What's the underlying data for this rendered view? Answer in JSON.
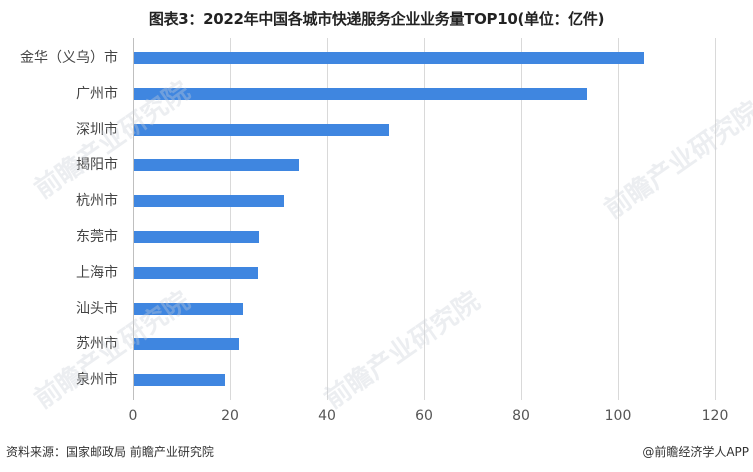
{
  "title": "图表3：2022年中国各城市快递服务企业业务量TOP10(单位：亿件)",
  "chart_data": {
    "type": "bar",
    "orientation": "horizontal",
    "title": "图表3：2022年中国各城市快递服务企业业务量TOP10(单位：亿件)",
    "categories": [
      "金华（义乌）市",
      "广州市",
      "深圳市",
      "揭阳市",
      "杭州市",
      "东莞市",
      "上海市",
      "汕头市",
      "苏州市",
      "泉州市"
    ],
    "values": [
      105.4,
      93.6,
      52.8,
      34.2,
      31.1,
      26.0,
      25.8,
      22.7,
      21.9,
      19.0
    ],
    "xlabel": "",
    "ylabel": "",
    "xlim": [
      0,
      120
    ],
    "xticks": [
      "0",
      "20",
      "40",
      "60",
      "80",
      "100",
      "120"
    ],
    "grid": true,
    "legend": "none",
    "bar_color": "#3f86e0"
  },
  "footer": {
    "source": "资料来源：国家邮政局 前瞻产业研究院",
    "credit": "@前瞻经济学人APP"
  },
  "watermark": "前瞻产业研究院"
}
